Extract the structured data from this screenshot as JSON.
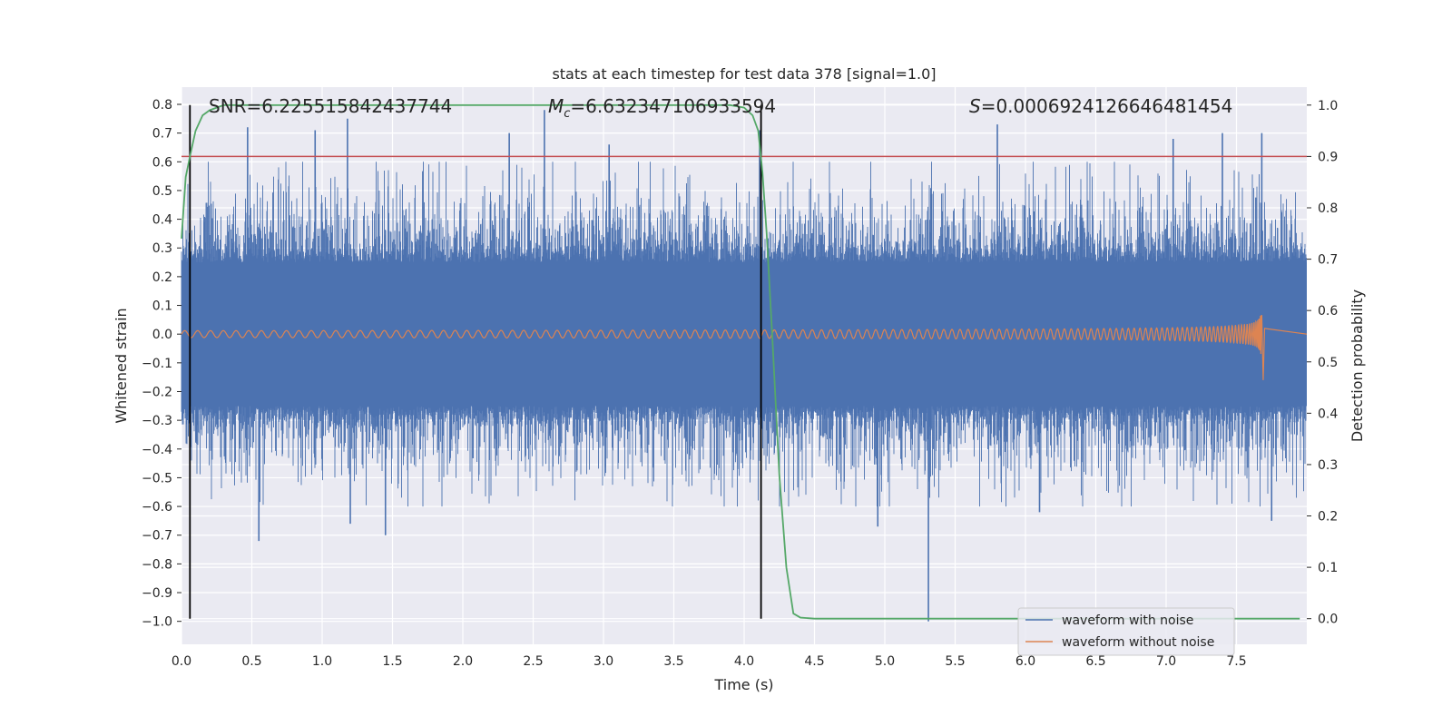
{
  "chart_data": {
    "type": "line",
    "title": "stats at each timestep for test data 378 [signal=1.0]",
    "xlabel": "Time (s)",
    "ylabel": "Whitened strain",
    "y2label": "Detection probability",
    "xlim": [
      0.0,
      8.0
    ],
    "ylim": [
      -1.08,
      0.86
    ],
    "y2lim": [
      -0.05,
      1.035
    ],
    "x_ticks": [
      0.0,
      0.5,
      1.0,
      1.5,
      2.0,
      2.5,
      3.0,
      3.5,
      4.0,
      4.5,
      5.0,
      5.5,
      6.0,
      6.5,
      7.0,
      7.5
    ],
    "x_tick_labels": [
      "0.0",
      "0.5",
      "1.0",
      "1.5",
      "2.0",
      "2.5",
      "3.0",
      "3.5",
      "4.0",
      "4.5",
      "5.0",
      "5.5",
      "6.0",
      "6.5",
      "7.0",
      "7.5"
    ],
    "y_ticks": [
      0.8,
      0.7,
      0.6,
      0.5,
      0.4,
      0.3,
      0.2,
      0.1,
      0.0,
      -0.1,
      -0.2,
      -0.3,
      -0.4,
      -0.5,
      -0.6,
      -0.7,
      -0.8,
      -0.9,
      -1.0
    ],
    "y_tick_labels": [
      "0.8",
      "0.7",
      "0.6",
      "0.5",
      "0.4",
      "0.3",
      "0.2",
      "0.1",
      "0.0",
      "−0.1",
      "−0.2",
      "−0.3",
      "−0.4",
      "−0.5",
      "−0.6",
      "−0.7",
      "−0.8",
      "−0.9",
      "−1.0"
    ],
    "y2_ticks": [
      1.0,
      0.9,
      0.8,
      0.7,
      0.6,
      0.5,
      0.4,
      0.3,
      0.2,
      0.1,
      0.0
    ],
    "y2_tick_labels": [
      "1.0",
      "0.9",
      "0.8",
      "0.7",
      "0.6",
      "0.5",
      "0.4",
      "0.3",
      "0.2",
      "0.1",
      "0.0"
    ],
    "grid": true,
    "legend_position": "lower-right",
    "annotations": {
      "snr": "SNR=6.225515842437744",
      "mc_symbol": "M",
      "mc_sub": "c",
      "mc_value": "=6.632347106933594",
      "s_symbol": "S",
      "s_value": "=0.0006924126646481454"
    },
    "threshold": 0.9,
    "vlines": [
      0.06,
      4.12
    ],
    "series": [
      {
        "name": "waveform with noise",
        "color": "#4c72b0",
        "kind": "noise",
        "core_amplitude": 0.25,
        "spike_envelope": 0.6,
        "spikes": [
          {
            "x": 0.47,
            "y": 0.72
          },
          {
            "x": 0.55,
            "y": -0.72
          },
          {
            "x": 0.95,
            "y": 0.71
          },
          {
            "x": 1.18,
            "y": 0.75
          },
          {
            "x": 1.2,
            "y": -0.66
          },
          {
            "x": 1.45,
            "y": -0.7
          },
          {
            "x": 2.33,
            "y": 0.7
          },
          {
            "x": 2.58,
            "y": 0.78
          },
          {
            "x": 3.04,
            "y": 0.66
          },
          {
            "x": 4.11,
            "y": 0.71
          },
          {
            "x": 4.95,
            "y": -0.67
          },
          {
            "x": 5.31,
            "y": -1.0
          },
          {
            "x": 5.8,
            "y": 0.73
          },
          {
            "x": 7.4,
            "y": 0.7
          },
          {
            "x": 7.68,
            "y": 0.7
          },
          {
            "x": 7.75,
            "y": -0.65
          },
          {
            "x": 7.05,
            "y": 0.68
          },
          {
            "x": 6.1,
            "y": -0.62
          }
        ]
      },
      {
        "name": "waveform without noise",
        "color": "#dd8452",
        "kind": "chirp",
        "merger_time": 7.68,
        "peak_amplitude": 0.13,
        "start_amplitude": 0.012
      },
      {
        "name": "detection probability",
        "color": "#55a868",
        "axis": "right",
        "x": [
          0.0,
          0.03,
          0.06,
          0.1,
          0.15,
          0.2,
          0.3,
          0.4,
          1.0,
          2.0,
          3.0,
          3.9,
          4.0,
          4.06,
          4.1,
          4.13,
          4.16,
          4.2,
          4.25,
          4.3,
          4.35,
          4.4,
          4.5,
          5.0,
          6.0,
          7.0,
          7.95
        ],
        "y": [
          0.74,
          0.86,
          0.9,
          0.95,
          0.98,
          0.99,
          1.0,
          1.0,
          1.0,
          1.0,
          1.0,
          1.0,
          0.995,
          0.98,
          0.95,
          0.87,
          0.75,
          0.55,
          0.28,
          0.1,
          0.01,
          0.002,
          0.0,
          0.0,
          0.0,
          0.0,
          0.0
        ]
      }
    ]
  }
}
